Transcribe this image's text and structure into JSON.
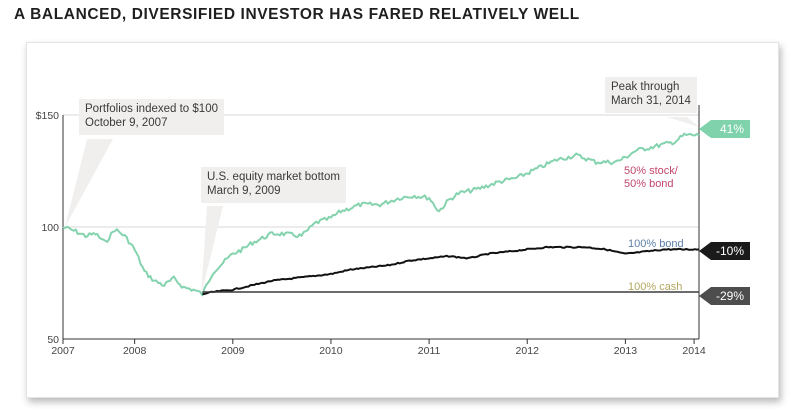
{
  "title": "A BALANCED, DIVERSIFIED INVESTOR HAS FARED RELATIVELY WELL",
  "annotations": {
    "indexed": [
      "Portfolios indexed to $100",
      "October 9, 2007"
    ],
    "bottom": [
      "U.S. equity market bottom",
      "March 9, 2009"
    ],
    "peak": [
      "Peak through",
      "March 31, 2014"
    ]
  },
  "end_tags": {
    "balanced": "41%",
    "bond": "-10%",
    "cash": "-29%"
  },
  "series_labels": {
    "balanced": [
      "50% stock/",
      "50% bond"
    ],
    "bond": "100% bond",
    "cash": "100% cash"
  },
  "colors": {
    "balanced": "#84d3ae",
    "bond": "#111111",
    "cash": "#3c3c3c",
    "balanced_label": "#c0476b",
    "bond_label": "#5b7fa8",
    "cash_label": "#b3a860"
  },
  "chart_data": {
    "type": "line",
    "ylim": [
      50,
      150
    ],
    "yticks": [
      50,
      100,
      150
    ],
    "ytick_labels": [
      "50",
      "100",
      "$150"
    ],
    "xlim": [
      2007.77,
      2014.25
    ],
    "xtick_labels": [
      "2007",
      "2008",
      "2009",
      "2010",
      "2011",
      "2012",
      "2013",
      "2014"
    ],
    "xtick_positions": [
      2007.77,
      2008.5,
      2009.5,
      2010.5,
      2011.5,
      2012.5,
      2013.5,
      2014.2
    ],
    "series": [
      {
        "name": "50% stock/ 50% bond",
        "x": [
          2007.77,
          2007.9,
          2008.0,
          2008.1,
          2008.2,
          2008.3,
          2008.4,
          2008.5,
          2008.6,
          2008.7,
          2008.8,
          2008.9,
          2009.0,
          2009.1,
          2009.19,
          2009.3,
          2009.4,
          2009.5,
          2009.6,
          2009.7,
          2009.8,
          2009.9,
          2010.0,
          2010.2,
          2010.35,
          2010.5,
          2010.6,
          2010.8,
          2011.0,
          2011.2,
          2011.35,
          2011.5,
          2011.6,
          2011.7,
          2011.8,
          2012.0,
          2012.2,
          2012.4,
          2012.6,
          2012.8,
          2013.0,
          2013.2,
          2013.4,
          2013.5,
          2013.6,
          2013.8,
          2014.0,
          2014.1,
          2014.25
        ],
        "values": [
          100,
          98,
          96,
          97,
          93,
          99,
          96,
          90,
          80,
          76,
          74,
          77,
          73,
          72,
          70,
          80,
          84,
          88,
          90,
          93,
          95,
          97,
          97,
          96,
          102,
          104,
          107,
          110,
          110,
          113,
          114,
          113,
          107,
          112,
          115,
          117,
          120,
          122,
          126,
          130,
          132,
          129,
          129,
          131,
          134,
          136,
          138,
          141,
          141
        ]
      },
      {
        "name": "100% bond",
        "x": [
          2009.19,
          2009.3,
          2009.5,
          2009.7,
          2009.9,
          2010.1,
          2010.3,
          2010.5,
          2010.7,
          2010.9,
          2011.1,
          2011.3,
          2011.5,
          2011.7,
          2011.9,
          2012.1,
          2012.3,
          2012.5,
          2012.7,
          2012.9,
          2013.1,
          2013.3,
          2013.5,
          2013.7,
          2013.9,
          2014.1,
          2014.25
        ],
        "values": [
          70,
          71,
          72,
          74,
          76,
          77,
          78,
          79,
          81,
          82,
          83,
          85,
          86,
          87,
          86,
          88,
          89,
          90,
          91,
          91,
          91,
          90,
          88,
          89,
          90,
          90,
          90
        ]
      },
      {
        "name": "100% cash",
        "x": [
          2009.19,
          2014.25
        ],
        "values": [
          71,
          71
        ]
      }
    ]
  }
}
